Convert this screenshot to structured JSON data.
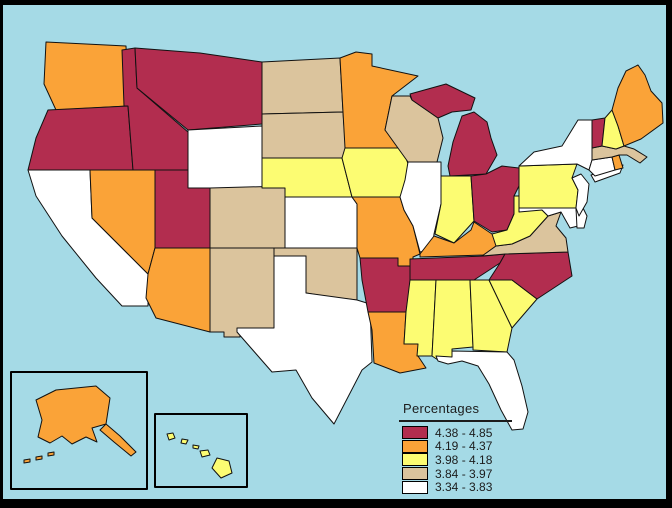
{
  "colors": {
    "sea_background": "#A5DAE6",
    "frame": "#000000",
    "state_border": "#111111"
  },
  "legend": {
    "title": "Percentages"
  },
  "map_data": {
    "type": "choropleth",
    "region": "United States (50 states; Alaska and Hawaii shown in inset boxes)",
    "measure": "Percentages",
    "classes": [
      {
        "range": "4.38 - 4.85",
        "color": "#B22D4F",
        "states": [
          "OR",
          "ID",
          "MT",
          "UT",
          "MI",
          "OH",
          "VT",
          "AR",
          "TN",
          "NC"
        ]
      },
      {
        "range": "4.19 - 4.37",
        "color": "#FAA338",
        "states": [
          "WA",
          "NV",
          "AZ",
          "MN",
          "MO",
          "KY",
          "LA",
          "ME",
          "RI",
          "AK"
        ]
      },
      {
        "range": "3.98 - 4.18",
        "color": "#FCFC72",
        "states": [
          "NE",
          "IA",
          "IN",
          "WV",
          "PA",
          "NH",
          "MS",
          "AL",
          "GA",
          "SC",
          "HI"
        ]
      },
      {
        "range": "3.84 - 3.97",
        "color": "#DBC49D",
        "states": [
          "ND",
          "SD",
          "WI",
          "CO",
          "NM",
          "OK",
          "VA",
          "MA"
        ]
      },
      {
        "range": "3.34 - 3.83",
        "color": "#FFFFFF",
        "states": [
          "CA",
          "WY",
          "KS",
          "TX",
          "IL",
          "NY",
          "NJ",
          "CT",
          "DE",
          "MD",
          "FL"
        ]
      }
    ]
  }
}
